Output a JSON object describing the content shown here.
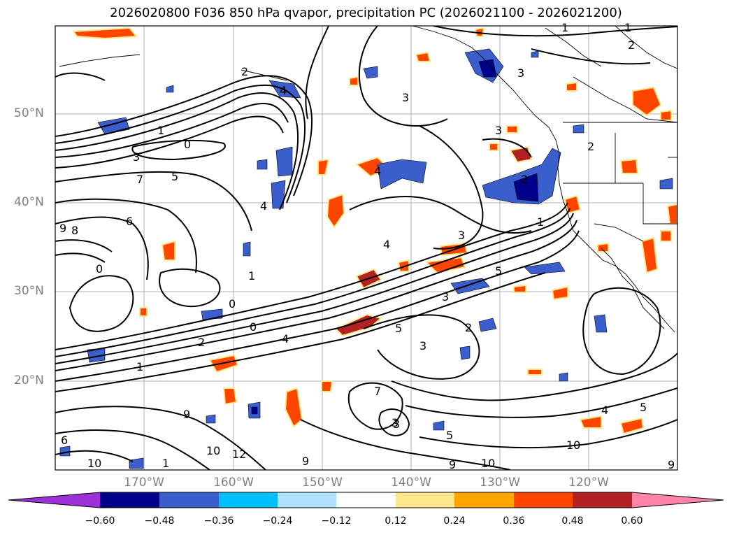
{
  "title": "2026020800 F036 850 hPa qvapor, precipitation PC (2026021100 - 2026021200)",
  "axes": {
    "lat_labels": [
      "50°N",
      "40°N",
      "30°N",
      "20°N"
    ],
    "lon_labels": [
      "170°W",
      "160°W",
      "150°W",
      "140°W",
      "130°W",
      "120°W"
    ]
  },
  "colorbar": {
    "ticks": [
      "−0.60",
      "−0.48",
      "−0.36",
      "−0.24",
      "−0.12",
      "0.12",
      "0.24",
      "0.36",
      "0.48",
      "0.60"
    ],
    "colors": [
      "#9b30d8",
      "#00008b",
      "#3a5fcd",
      "#00bfff",
      "#b0e2ff",
      "#ffffff",
      "#ffe88c",
      "#ffa500",
      "#ff4500",
      "#b22222",
      "#ff85a8"
    ]
  },
  "contour_labels": [
    "1",
    "1",
    "2",
    "3",
    "3",
    "3",
    "0",
    "1",
    "2",
    "3",
    "5",
    "7",
    "6",
    "4",
    "8",
    "9",
    "0",
    "0",
    "0",
    "1",
    "2",
    "4",
    "4",
    "3",
    "3",
    "2",
    "1",
    "5",
    "2",
    "3",
    "5",
    "3",
    "4",
    "7",
    "1",
    "9",
    "10",
    "12",
    "9",
    "10",
    "5",
    "3",
    "9",
    "10",
    "4",
    "5",
    "10",
    "9",
    "6",
    "1",
    "2",
    "4"
  ]
}
